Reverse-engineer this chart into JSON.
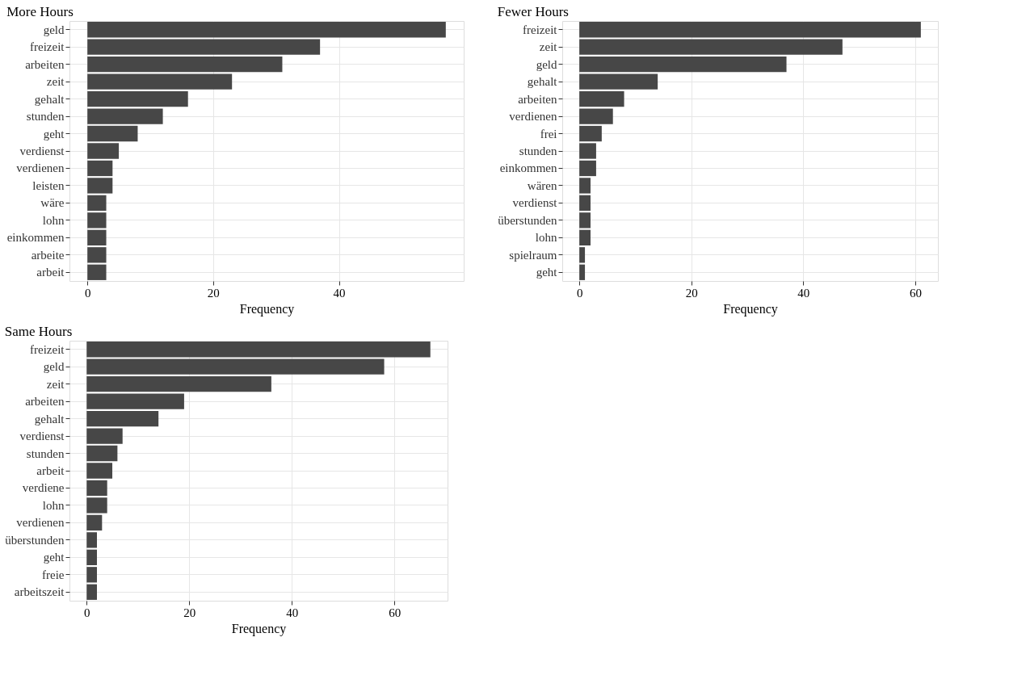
{
  "chart_data": [
    {
      "type": "bar",
      "orientation": "horizontal",
      "title": "More Hours",
      "xlabel": "Frequency",
      "color": "#474747",
      "grid": true,
      "categories": [
        "geld",
        "freizeit",
        "arbeiten",
        "zeit",
        "gehalt",
        "stunden",
        "geht",
        "verdienst",
        "verdienen",
        "leisten",
        "wäre",
        "lohn",
        "einkommen",
        "arbeite",
        "arbeit"
      ],
      "values": [
        57,
        37,
        31,
        23,
        16,
        12,
        8,
        5,
        4,
        4,
        3,
        3,
        3,
        3,
        3
      ],
      "xlim": [
        -2.85,
        59.85
      ],
      "xticks": [
        0,
        20,
        40
      ]
    },
    {
      "type": "bar",
      "orientation": "horizontal",
      "title": "Fewer Hours",
      "xlabel": "Frequency",
      "color": "#474747",
      "grid": true,
      "categories": [
        "freizeit",
        "zeit",
        "geld",
        "gehalt",
        "arbeiten",
        "verdienen",
        "frei",
        "stunden",
        "einkommen",
        "wären",
        "verdienst",
        "überstunden",
        "lohn",
        "spielraum",
        "geht"
      ],
      "values": [
        61,
        47,
        37,
        14,
        8,
        6,
        4,
        3,
        3,
        2,
        2,
        2,
        2,
        1,
        1
      ],
      "xlim": [
        -3.05,
        64.05
      ],
      "xticks": [
        0,
        20,
        40,
        60
      ]
    },
    {
      "type": "bar",
      "orientation": "horizontal",
      "title": "Same Hours",
      "xlabel": "Frequency",
      "color": "#474747",
      "grid": true,
      "categories": [
        "freizeit",
        "geld",
        "zeit",
        "arbeiten",
        "gehalt",
        "verdienst",
        "stunden",
        "arbeit",
        "verdiene",
        "lohn",
        "verdienen",
        "überstunden",
        "geht",
        "freie",
        "arbeitszeit"
      ],
      "values": [
        67,
        58,
        36,
        19,
        14,
        7,
        6,
        5,
        4,
        4,
        3,
        2,
        2,
        2,
        2
      ],
      "xlim": [
        -3.35,
        70.35
      ],
      "xticks": [
        0,
        20,
        40,
        60
      ]
    }
  ]
}
